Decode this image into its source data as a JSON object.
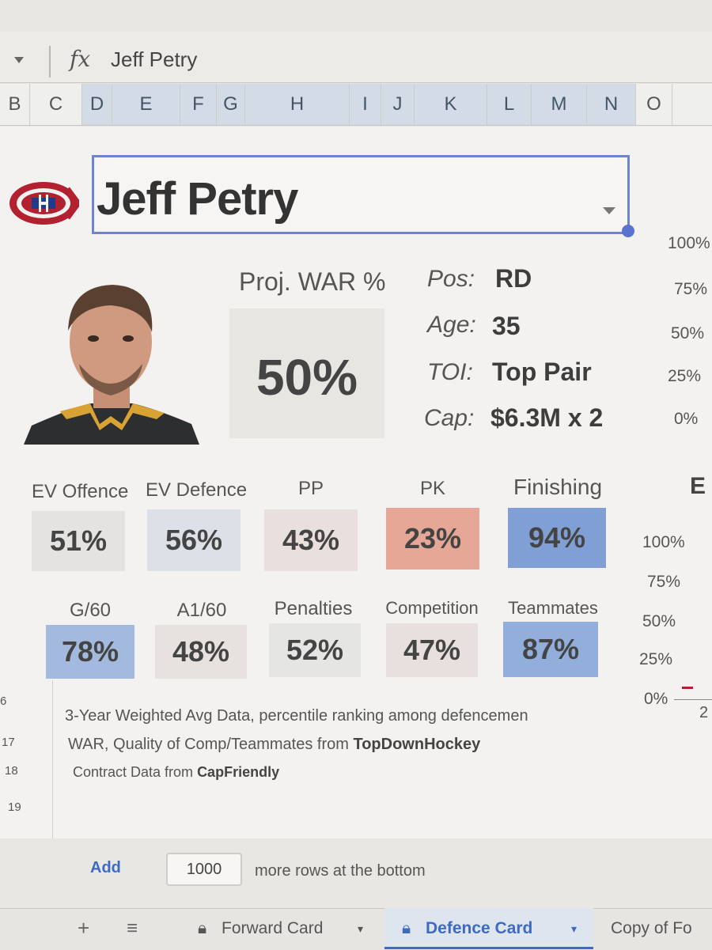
{
  "formula_bar": {
    "fx_label": "fx",
    "value": "Jeff Petry"
  },
  "columns": [
    "B",
    "C",
    "D",
    "E",
    "F",
    "G",
    "H",
    "I",
    "J",
    "K",
    "L",
    "M",
    "N",
    "O"
  ],
  "rows": [
    "6",
    "17",
    "18",
    "19"
  ],
  "player": {
    "name": "Jeff Petry",
    "war_label": "Proj. WAR %",
    "war_value": "50%",
    "bio": [
      {
        "label": "Pos:",
        "value": "RD"
      },
      {
        "label": "Age:",
        "value": "35"
      },
      {
        "label": "TOI:",
        "value": "Top Pair"
      },
      {
        "label": "Cap:",
        "value": "$6.3M x 2"
      }
    ]
  },
  "right_axis_top": [
    "100%",
    "75%",
    "50%",
    "25%",
    "0%"
  ],
  "right_axis_bottom": [
    "100%",
    "75%",
    "50%",
    "25%",
    "0%"
  ],
  "right_title": "E",
  "right_axis_tick": "2",
  "stats_row1": [
    {
      "label": "EV Offence",
      "value": "51%",
      "color": "#e4e3e1"
    },
    {
      "label": "EV Defence",
      "value": "56%",
      "color": "#dde1e7"
    },
    {
      "label": "PP",
      "value": "43%",
      "color": "#e9dfdc"
    },
    {
      "label": "PK",
      "value": "23%",
      "color": "#e6a797"
    },
    {
      "label": "Finishing",
      "value": "94%",
      "color": "#7f9fd5"
    }
  ],
  "stats_row2": [
    {
      "label": "G/60",
      "value": "78%",
      "color": "#a3b9dd"
    },
    {
      "label": "A1/60",
      "value": "48%",
      "color": "#e7e2e0"
    },
    {
      "label": "Penalties",
      "value": "52%",
      "color": "#e5e5e4"
    },
    {
      "label": "Competition",
      "value": "47%",
      "color": "#e7e0de"
    },
    {
      "label": "Teammates",
      "value": "87%",
      "color": "#92aedb"
    }
  ],
  "notes": {
    "line1": "3-Year Weighted Avg Data, percentile ranking among defencemen",
    "line2_prefix": "WAR, Quality of Comp/Teammates from ",
    "line2_source": "TopDownHockey",
    "line3_prefix": "Contract Data from ",
    "line3_source": "CapFriendly"
  },
  "add_rows": {
    "link": "Add",
    "count": "1000",
    "suffix": "more rows at the bottom"
  },
  "tabs": [
    {
      "label": "Forward Card"
    },
    {
      "label": "Defence Card"
    },
    {
      "label": "Copy of Fo"
    }
  ],
  "colors": {
    "accent": "#3d6bc4",
    "selection": "#6f84cf",
    "habs_red": "#b3202f",
    "habs_blue": "#1d3c8a"
  }
}
